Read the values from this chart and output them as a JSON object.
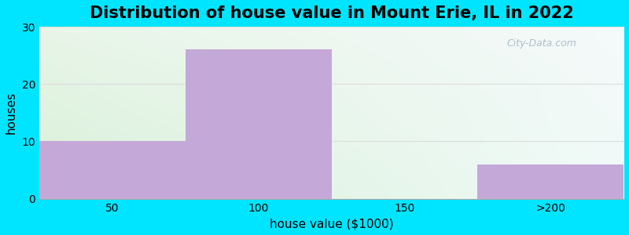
{
  "title": "Distribution of house value in Mount Erie, IL in 2022",
  "xlabel": "house value ($1000)",
  "ylabel": "houses",
  "categories": [
    "50",
    "100",
    "150",
    ">200"
  ],
  "values": [
    10,
    26,
    0,
    6
  ],
  "bar_color": "#c4a8d8",
  "ylim": [
    0,
    30
  ],
  "yticks": [
    0,
    10,
    20,
    30
  ],
  "figure_bg": "#00e5ff",
  "title_fontsize": 15,
  "label_fontsize": 11,
  "tick_fontsize": 10,
  "watermark_text": "City-Data.com",
  "grid_color": "#dddddd",
  "bg_color_topleft": "#dff5df",
  "bg_color_topright": "#f0f8f8",
  "bg_color_bottomleft": "#e8ffe8",
  "bg_color_bottomright": "#ffffff"
}
